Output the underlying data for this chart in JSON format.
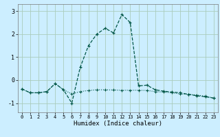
{
  "title": "",
  "xlabel": "Humidex (Indice chaleur)",
  "bg_color": "#cceeff",
  "grid_color": "#aaccbb",
  "line_color": "#005544",
  "xlim": [
    -0.5,
    23.5
  ],
  "ylim": [
    -1.4,
    3.3
  ],
  "yticks": [
    -1,
    0,
    1,
    2,
    3
  ],
  "xticks": [
    0,
    1,
    2,
    3,
    4,
    5,
    6,
    7,
    8,
    9,
    10,
    11,
    12,
    13,
    14,
    15,
    16,
    17,
    18,
    19,
    20,
    21,
    22,
    23
  ],
  "line1_x": [
    0,
    1,
    2,
    3,
    4,
    5,
    6,
    7,
    8,
    9,
    10,
    11,
    12,
    13,
    14,
    15,
    16,
    17,
    18,
    19,
    20,
    21,
    22,
    23
  ],
  "line1_y": [
    -0.38,
    -0.55,
    -0.55,
    -0.5,
    -0.15,
    -0.42,
    -0.6,
    -0.5,
    -0.45,
    -0.42,
    -0.42,
    -0.43,
    -0.44,
    -0.44,
    -0.44,
    -0.45,
    -0.5,
    -0.52,
    -0.55,
    -0.6,
    -0.62,
    -0.65,
    -0.7,
    -0.78
  ],
  "line2_x": [
    0,
    1,
    2,
    3,
    4,
    5,
    6,
    7,
    8,
    9,
    10,
    11,
    12,
    13,
    14,
    15,
    16,
    17,
    18,
    19,
    20,
    21,
    22,
    23
  ],
  "line2_y": [
    -0.38,
    -0.55,
    -0.55,
    -0.5,
    -0.15,
    -0.42,
    -1.0,
    0.55,
    1.5,
    2.0,
    2.25,
    2.05,
    2.85,
    2.5,
    -0.25,
    -0.22,
    -0.42,
    -0.48,
    -0.52,
    -0.55,
    -0.62,
    -0.68,
    -0.72,
    -0.78
  ]
}
